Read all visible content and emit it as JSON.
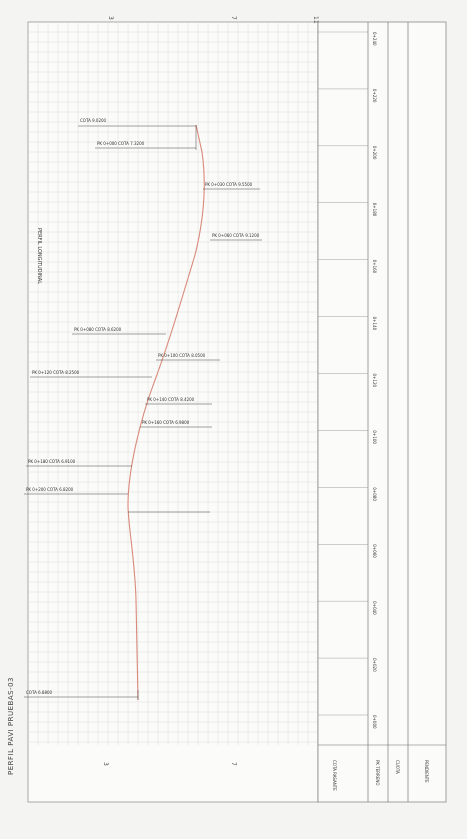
{
  "title": "PERFIL PAVI PRUEBAS-03",
  "scale_labels": [
    "3",
    "7",
    "11"
  ],
  "scale_labels_bottom": [
    "3",
    "7"
  ],
  "bottom_headers": [
    "COTA RASANTE",
    "PK TERRENO",
    "CUOTA",
    "PENDIENTE"
  ],
  "stations": [
    "0+000",
    "0+020",
    "0+040",
    "0+060",
    "0+080",
    "0+100",
    "0+120",
    "0+140",
    "0+160",
    "0+180",
    "0+200",
    "0+220",
    "0+240"
  ],
  "profile_label": "PERFIL LONGITUDINAL",
  "annotations": [
    "COTA 9.0200",
    "PK 0+000 COTA 7.3200",
    "PK 0+030 COTA 9.5500",
    "PK 0+060 COTA 9.1200",
    "PK 0+080 COTA 8.6200",
    "PK 0+100 COTA 8.0500",
    "PK 0+120 COTA 8.2500",
    "PK 0+140 COTA 8.4200",
    "PK 0+160 COTA 6.9800",
    "PK 0+180 COTA 6.9100",
    "PK 0+200 COTA 6.8200",
    "COTA 6.8800"
  ]
}
